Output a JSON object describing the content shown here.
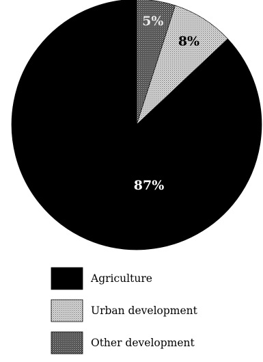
{
  "chart_data": {
    "type": "pie",
    "slices": [
      {
        "label": "Agriculture",
        "value": 87,
        "display": "87%",
        "color": "#000000",
        "pattern": "solid",
        "text_color": "#ffffff"
      },
      {
        "label": "Urban development",
        "value": 8,
        "display": "8%",
        "color": "#d8d8d8",
        "pattern": "light-dots",
        "text_color": "#000000"
      },
      {
        "label": "Other development",
        "value": 5,
        "display": "5%",
        "color": "#6e6e6e",
        "pattern": "dark-dots",
        "text_color": "#e8e8e8"
      }
    ],
    "start": "top",
    "direction": "counterclockwise",
    "legend_position": "bottom"
  }
}
